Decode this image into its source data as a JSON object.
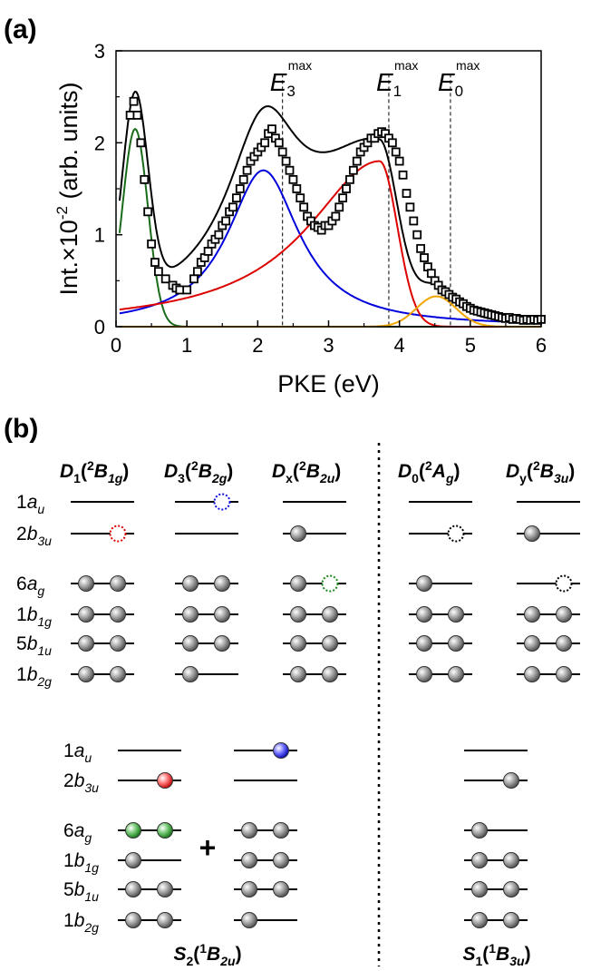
{
  "panel_a": {
    "label": "(a)",
    "chart_data": {
      "type": "line",
      "xlabel": "PKE (eV)",
      "ylabel_main": "Int.×10",
      "ylabel_exp": "-2",
      "ylabel_tail": " (arb. units)",
      "xlim": [
        0,
        6
      ],
      "ylim": [
        0,
        3
      ],
      "xticks": [
        "0",
        "1",
        "2",
        "3",
        "4",
        "5",
        "6"
      ],
      "yticks": [
        "0",
        "1",
        "2",
        "3"
      ],
      "vlines": [
        {
          "x": 2.35,
          "label": "E",
          "sub": "3",
          "sup": "max"
        },
        {
          "x": 3.85,
          "label": "E",
          "sub": "1",
          "sup": "max"
        },
        {
          "x": 4.72,
          "label": "E",
          "sub": "0",
          "sup": "max"
        }
      ],
      "series": [
        {
          "color": "#1a6b1a",
          "model": "gauss",
          "A": 2.15,
          "mu": 0.27,
          "sigma": 0.18
        },
        {
          "color": "#0000dd",
          "model": "lorentz",
          "A": 1.7,
          "mu": 2.08,
          "gamma": 0.62
        },
        {
          "color": "#dd0000",
          "model": "asym",
          "A": 1.8,
          "mu": 3.72,
          "left": 1.25,
          "right": 0.25
        },
        {
          "color": "#f0a500",
          "model": "gauss",
          "A": 0.33,
          "mu": 4.52,
          "sigma": 0.28
        }
      ],
      "points": [
        [
          0.2,
          2.3
        ],
        [
          0.25,
          2.45
        ],
        [
          0.3,
          2.3
        ],
        [
          0.35,
          2.0
        ],
        [
          0.4,
          1.6
        ],
        [
          0.45,
          1.25
        ],
        [
          0.5,
          0.9
        ],
        [
          0.55,
          0.7
        ],
        [
          0.6,
          0.6
        ],
        [
          0.7,
          0.52
        ],
        [
          0.8,
          0.45
        ],
        [
          0.85,
          0.42
        ],
        [
          0.9,
          0.4
        ],
        [
          1.0,
          0.4
        ],
        [
          1.1,
          0.52
        ],
        [
          1.15,
          0.6
        ],
        [
          1.2,
          0.7
        ],
        [
          1.25,
          0.75
        ],
        [
          1.3,
          0.82
        ],
        [
          1.35,
          0.9
        ],
        [
          1.4,
          0.95
        ],
        [
          1.45,
          1.0
        ],
        [
          1.5,
          1.1
        ],
        [
          1.55,
          1.15
        ],
        [
          1.6,
          1.25
        ],
        [
          1.65,
          1.3
        ],
        [
          1.7,
          1.4
        ],
        [
          1.75,
          1.5
        ],
        [
          1.8,
          1.6
        ],
        [
          1.85,
          1.7
        ],
        [
          1.9,
          1.8
        ],
        [
          1.95,
          1.85
        ],
        [
          2.0,
          1.9
        ],
        [
          2.05,
          1.95
        ],
        [
          2.1,
          2.0
        ],
        [
          2.15,
          2.1
        ],
        [
          2.2,
          2.15
        ],
        [
          2.25,
          2.05
        ],
        [
          2.3,
          2.0
        ],
        [
          2.35,
          1.9
        ],
        [
          2.4,
          1.8
        ],
        [
          2.45,
          1.7
        ],
        [
          2.5,
          1.6
        ],
        [
          2.55,
          1.5
        ],
        [
          2.6,
          1.4
        ],
        [
          2.65,
          1.3
        ],
        [
          2.7,
          1.2
        ],
        [
          2.75,
          1.15
        ],
        [
          2.8,
          1.1
        ],
        [
          2.85,
          1.08
        ],
        [
          2.9,
          1.05
        ],
        [
          2.95,
          1.1
        ],
        [
          3.0,
          1.1
        ],
        [
          3.05,
          1.15
        ],
        [
          3.1,
          1.2
        ],
        [
          3.15,
          1.3
        ],
        [
          3.2,
          1.4
        ],
        [
          3.25,
          1.5
        ],
        [
          3.3,
          1.6
        ],
        [
          3.35,
          1.7
        ],
        [
          3.4,
          1.8
        ],
        [
          3.45,
          1.9
        ],
        [
          3.5,
          1.95
        ],
        [
          3.55,
          2.0
        ],
        [
          3.6,
          2.05
        ],
        [
          3.65,
          2.05
        ],
        [
          3.7,
          2.1
        ],
        [
          3.75,
          2.12
        ],
        [
          3.8,
          2.1
        ],
        [
          3.85,
          2.05
        ],
        [
          3.9,
          2.0
        ],
        [
          3.95,
          1.9
        ],
        [
          4.0,
          1.8
        ],
        [
          4.05,
          1.65
        ],
        [
          4.1,
          1.45
        ],
        [
          4.15,
          1.3
        ],
        [
          4.2,
          1.15
        ],
        [
          4.25,
          1.0
        ],
        [
          4.3,
          0.85
        ],
        [
          4.35,
          0.75
        ],
        [
          4.4,
          0.65
        ],
        [
          4.45,
          0.58
        ],
        [
          4.5,
          0.5
        ],
        [
          4.55,
          0.45
        ],
        [
          4.6,
          0.4
        ],
        [
          4.65,
          0.38
        ],
        [
          4.7,
          0.35
        ],
        [
          4.75,
          0.32
        ],
        [
          4.8,
          0.3
        ],
        [
          4.85,
          0.27
        ],
        [
          4.9,
          0.25
        ],
        [
          4.95,
          0.22
        ],
        [
          5.0,
          0.2
        ],
        [
          5.05,
          0.18
        ],
        [
          5.1,
          0.17
        ],
        [
          5.15,
          0.16
        ],
        [
          5.2,
          0.15
        ],
        [
          5.25,
          0.14
        ],
        [
          5.3,
          0.13
        ],
        [
          5.35,
          0.12
        ],
        [
          5.4,
          0.11
        ],
        [
          5.45,
          0.1
        ],
        [
          5.5,
          0.09
        ],
        [
          5.55,
          0.1
        ],
        [
          5.6,
          0.08
        ],
        [
          5.65,
          0.09
        ],
        [
          5.7,
          0.08
        ],
        [
          5.75,
          0.07
        ],
        [
          5.8,
          0.08
        ],
        [
          5.85,
          0.07
        ],
        [
          5.9,
          0.08
        ],
        [
          5.95,
          0.07
        ],
        [
          6.0,
          0.08
        ]
      ]
    }
  },
  "panel_b": {
    "label": "(b)",
    "orbitals": [
      {
        "n": "1",
        "l": "a",
        "s": "u"
      },
      {
        "n": "2",
        "l": "b",
        "s": "3u"
      },
      {
        "n": "6",
        "l": "a",
        "s": "g"
      },
      {
        "n": "1",
        "l": "b",
        "s": "1g"
      },
      {
        "n": "5",
        "l": "b",
        "s": "1u"
      },
      {
        "n": "1",
        "l": "b",
        "s": "2g"
      }
    ],
    "columns": [
      {
        "d": "D",
        "ds": "1",
        "p": "(",
        "m": "2",
        "t": "B",
        "ts": "1g",
        "c": ")",
        "occ": [
          "",
          "hole-red",
          "2",
          "2",
          "2",
          "2"
        ]
      },
      {
        "d": "D",
        "ds": "3",
        "p": "(",
        "m": "2",
        "t": "B",
        "ts": "2g",
        "c": ")",
        "occ": [
          "hole-blue",
          "",
          "2",
          "2",
          "2",
          "1"
        ]
      },
      {
        "d": "D",
        "ds": "x",
        "p": "(",
        "m": "2",
        "t": "B",
        "ts": "2u",
        "c": ")",
        "occ": [
          "",
          "1",
          "1+hole-green",
          "2",
          "2",
          "2"
        ]
      },
      {
        "d": "D",
        "ds": "0",
        "p": "(",
        "m": "2",
        "t": "A",
        "ts": "g",
        "c": ")",
        "occ": [
          "",
          "hole-black",
          "1",
          "2",
          "2",
          "2"
        ]
      },
      {
        "d": "D",
        "ds": "y",
        "p": "(",
        "m": "2",
        "t": "B",
        "ts": "3u",
        "c": ")",
        "occ": [
          "",
          "1",
          "hole-black",
          "2",
          "2",
          "2"
        ]
      }
    ],
    "plus": "+",
    "s2": {
      "t": "S",
      "ts": "2",
      "p": "(",
      "m": "1",
      "b": "B",
      "bs": "2u",
      "c": ")"
    },
    "s1": {
      "t": "S",
      "ts": "1",
      "p": "(",
      "m": "1",
      "b": "B",
      "bs": "3u",
      "c": ")"
    }
  }
}
